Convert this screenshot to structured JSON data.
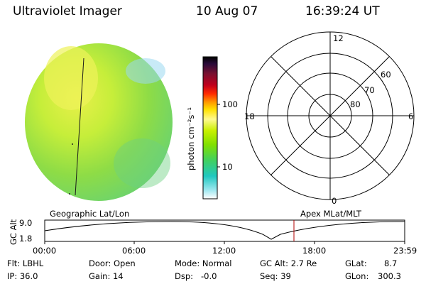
{
  "header": {
    "title": "Ultraviolet Imager",
    "date": "10 Aug 07",
    "time": "16:39:24 UT"
  },
  "colorbar": {
    "label": "photon cm⁻²s⁻¹",
    "ticks": [
      "100",
      "10"
    ],
    "colors": [
      "#000000",
      "#2a0a3a",
      "#7a1030",
      "#c0001c",
      "#ff2a00",
      "#ff9a00",
      "#ffe000",
      "#fffa90",
      "#c8f000",
      "#80e000",
      "#40d060",
      "#20c8c0",
      "#a0e8f0",
      "#ffffff"
    ]
  },
  "polar": {
    "labels": {
      "top": "12",
      "right": "6",
      "bottom": "0",
      "left": "18"
    },
    "rings": [
      "80",
      "70",
      "60"
    ]
  },
  "timeline": {
    "left_caption": "Geographic Lat/Lon",
    "right_caption": "Apex MLat/MLT",
    "axis_title": "GC Alt",
    "y_ticks": [
      "9.0",
      "1.8"
    ],
    "x_ticks": [
      "00:00",
      "06:00",
      "12:00",
      "18:00",
      "23:59"
    ]
  },
  "info": {
    "row1": [
      "Flt: LBHL",
      "Door: Open",
      "Mode: Normal",
      "GC Alt: 2.7 Re",
      "GLat:",
      "8.7"
    ],
    "row2": [
      "IP: 36.0",
      "Gain: 14",
      "Dsp:   -0.0",
      "Seq: 39",
      "GLon:",
      "300.3"
    ]
  }
}
